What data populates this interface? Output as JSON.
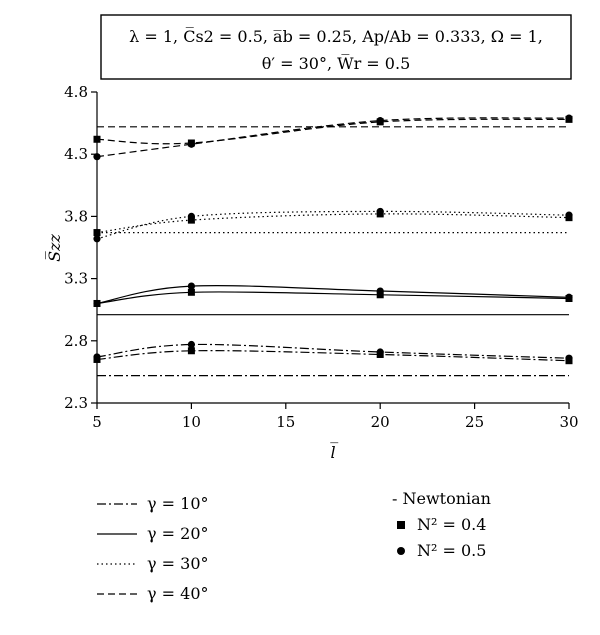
{
  "chart_data": {
    "type": "line",
    "title_lines": [
      "λ = 1, C̅s2 = 0.5, a̅b = 0.25, Ap/Ab = 0.333, Ω = 1,",
      "θ′ = 30°, W̅r = 0.5"
    ],
    "xlabel": "l̅",
    "ylabel": "S̅zz",
    "xlim": [
      5,
      30
    ],
    "ylim": [
      2.3,
      4.8
    ],
    "x_ticks": [
      "5",
      "10",
      "15",
      "20",
      "25",
      "30"
    ],
    "y_ticks": [
      "2.3",
      "2.8",
      "3.3",
      "3.8",
      "4.3",
      "4.8"
    ],
    "grid": false,
    "legend_styles": [
      {
        "label": "γ = 10°",
        "dash": "dashdot"
      },
      {
        "label": "γ = 20°",
        "dash": "solid"
      },
      {
        "label": "γ = 30°",
        "dash": "dotted"
      },
      {
        "label": "γ = 40°",
        "dash": "dashed"
      }
    ],
    "legend_markers": [
      {
        "label": "- Newtonian",
        "marker": "none"
      },
      {
        "label": "N² = 0.4",
        "marker": "square"
      },
      {
        "label": "N² = 0.5",
        "marker": "circle"
      }
    ],
    "series": [
      {
        "gamma": "10°",
        "model": "newtonian",
        "dash": "dashdot",
        "points": [
          [
            5,
            2.52
          ],
          [
            30,
            2.52
          ]
        ]
      },
      {
        "gamma": "10°",
        "model": "N2=0.4",
        "dash": "dashdot",
        "marker": "square",
        "points": [
          [
            5,
            2.65
          ],
          [
            10,
            2.72
          ],
          [
            20,
            2.69
          ],
          [
            30,
            2.64
          ]
        ]
      },
      {
        "gamma": "10°",
        "model": "N2=0.5",
        "dash": "dashdot",
        "marker": "circle",
        "points": [
          [
            5,
            2.67
          ],
          [
            10,
            2.77
          ],
          [
            20,
            2.71
          ],
          [
            30,
            2.66
          ]
        ]
      },
      {
        "gamma": "20°",
        "model": "newtonian",
        "dash": "solid",
        "points": [
          [
            5,
            3.01
          ],
          [
            30,
            3.01
          ]
        ]
      },
      {
        "gamma": "20°",
        "model": "N2=0.4",
        "dash": "solid",
        "marker": "square",
        "points": [
          [
            5,
            3.1
          ],
          [
            10,
            3.19
          ],
          [
            20,
            3.17
          ],
          [
            30,
            3.14
          ]
        ]
      },
      {
        "gamma": "20°",
        "model": "N2=0.5",
        "dash": "solid",
        "marker": "circle",
        "points": [
          [
            5,
            3.1
          ],
          [
            10,
            3.24
          ],
          [
            20,
            3.2
          ],
          [
            30,
            3.15
          ]
        ]
      },
      {
        "gamma": "30°",
        "model": "newtonian",
        "dash": "dotted",
        "points": [
          [
            5,
            3.67
          ],
          [
            30,
            3.67
          ]
        ]
      },
      {
        "gamma": "30°",
        "model": "N2=0.4",
        "dash": "dotted",
        "marker": "square",
        "points": [
          [
            5,
            3.67
          ],
          [
            10,
            3.77
          ],
          [
            20,
            3.82
          ],
          [
            30,
            3.79
          ]
        ]
      },
      {
        "gamma": "30°",
        "model": "N2=0.5",
        "dash": "dotted",
        "marker": "circle",
        "points": [
          [
            5,
            3.62
          ],
          [
            10,
            3.8
          ],
          [
            20,
            3.84
          ],
          [
            30,
            3.81
          ]
        ]
      },
      {
        "gamma": "40°",
        "model": "newtonian",
        "dash": "dashed",
        "points": [
          [
            5,
            4.52
          ],
          [
            30,
            4.52
          ]
        ]
      },
      {
        "gamma": "40°",
        "model": "N2=0.4",
        "dash": "dashed",
        "marker": "square",
        "points": [
          [
            5,
            4.42
          ],
          [
            10,
            4.39
          ],
          [
            20,
            4.56
          ],
          [
            30,
            4.58
          ]
        ]
      },
      {
        "gamma": "40°",
        "model": "N2=0.5",
        "dash": "dashed",
        "marker": "circle",
        "points": [
          [
            5,
            4.28
          ],
          [
            10,
            4.38
          ],
          [
            20,
            4.57
          ],
          [
            30,
            4.59
          ]
        ]
      }
    ]
  }
}
